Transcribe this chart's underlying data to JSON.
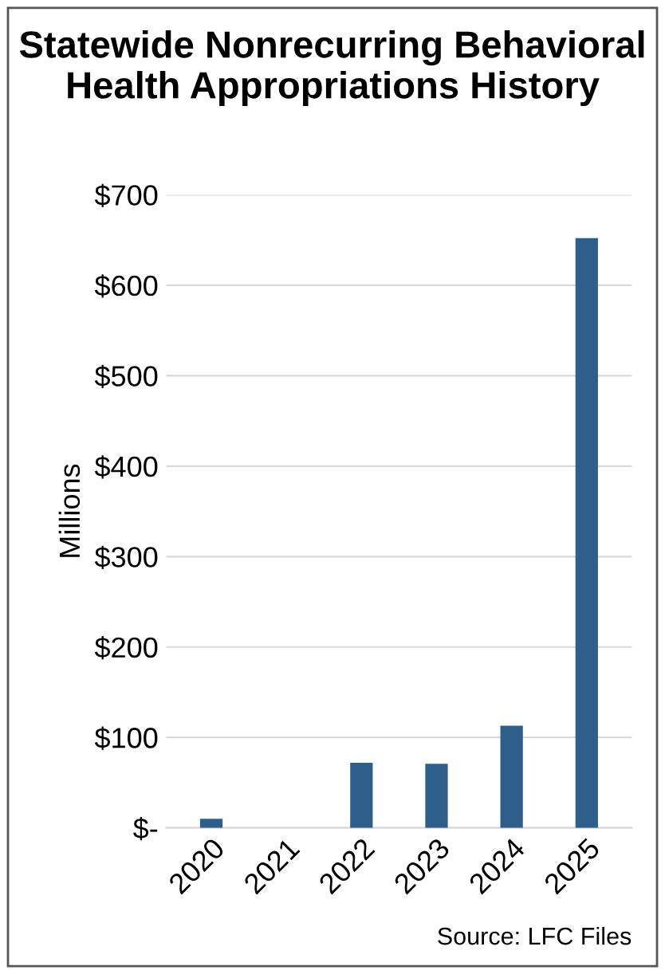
{
  "chart_data": {
    "type": "bar",
    "title": "Statewide Nonrecurring Behavioral Health Appropriations History",
    "categories": [
      "2020",
      "2021",
      "2022",
      "2023",
      "2024",
      "2025"
    ],
    "values": [
      10,
      0,
      72,
      71,
      113,
      652
    ],
    "color": "#2e5f8a",
    "ylabel": "Millions",
    "ylim": [
      0,
      700
    ],
    "yticks": [
      {
        "value": 0,
        "label": "$-"
      },
      {
        "value": 100,
        "label": "$100"
      },
      {
        "value": 200,
        "label": "$200"
      },
      {
        "value": 300,
        "label": "$300"
      },
      {
        "value": 400,
        "label": "$400"
      },
      {
        "value": 500,
        "label": "$500"
      },
      {
        "value": 600,
        "label": "$600"
      },
      {
        "value": 700,
        "label": "$700"
      }
    ],
    "grid": "y",
    "annotations": [
      "Source: LFC Files"
    ]
  }
}
